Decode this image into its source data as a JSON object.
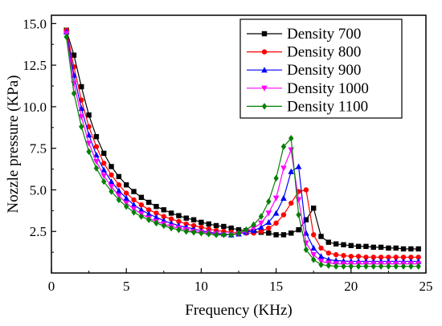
{
  "chart_data": {
    "type": "line",
    "xlabel": "Frequency (KHz)",
    "ylabel": "Nozzle pressure (KPa)",
    "xlim": [
      0,
      25
    ],
    "ylim": [
      0,
      15.5
    ],
    "x_ticks": [
      0,
      5,
      10,
      15,
      20,
      25
    ],
    "x_tick_labels": [
      "0",
      "5",
      "10",
      "15",
      "20",
      "25"
    ],
    "y_ticks": [
      2.5,
      5.0,
      7.5,
      10.0,
      12.5,
      15.0
    ],
    "y_tick_labels": [
      "2.5",
      "5.0",
      "7.5",
      "10.0",
      "12.5",
      "15.0"
    ],
    "grid": false,
    "legend_position": "top-right",
    "series": [
      {
        "name": "Density 700",
        "color": "#000000",
        "marker": "square",
        "x": [
          1.0,
          1.5,
          2.0,
          2.5,
          3.0,
          3.5,
          4.0,
          4.5,
          5.0,
          5.5,
          6.0,
          6.5,
          7.0,
          7.5,
          8.0,
          8.5,
          9.0,
          9.5,
          10.0,
          10.5,
          11.0,
          11.5,
          12.0,
          12.5,
          13.0,
          13.5,
          14.0,
          14.5,
          15.0,
          15.5,
          16.0,
          16.5,
          17.0,
          17.5,
          18.0,
          18.5,
          19.0,
          19.5,
          20.0,
          20.5,
          21.0,
          21.5,
          22.0,
          22.5,
          23.0,
          23.5,
          24.0,
          24.5
        ],
        "y": [
          14.6,
          13.1,
          11.2,
          9.5,
          8.2,
          7.2,
          6.4,
          5.8,
          5.3,
          4.9,
          4.55,
          4.25,
          4.0,
          3.8,
          3.6,
          3.45,
          3.3,
          3.2,
          3.05,
          2.95,
          2.85,
          2.8,
          2.7,
          2.6,
          2.55,
          2.5,
          2.45,
          2.4,
          2.3,
          2.3,
          2.4,
          2.6,
          3.2,
          3.9,
          2.2,
          1.85,
          1.75,
          1.7,
          1.65,
          1.6,
          1.6,
          1.55,
          1.55,
          1.5,
          1.5,
          1.45,
          1.45,
          1.45
        ]
      },
      {
        "name": "Density 800",
        "color": "#ff0000",
        "marker": "circle",
        "x": [
          1.0,
          1.5,
          2.0,
          2.5,
          3.0,
          3.5,
          4.0,
          4.5,
          5.0,
          5.5,
          6.0,
          6.5,
          7.0,
          7.5,
          8.0,
          8.5,
          9.0,
          9.5,
          10.0,
          10.5,
          11.0,
          11.5,
          12.0,
          12.5,
          13.0,
          13.5,
          14.0,
          14.5,
          15.0,
          15.5,
          16.0,
          16.5,
          17.0,
          17.5,
          18.0,
          18.5,
          19.0,
          19.5,
          20.0,
          20.5,
          21.0,
          21.5,
          22.0,
          22.5,
          23.0,
          23.5,
          24.0,
          24.5
        ],
        "y": [
          14.6,
          12.4,
          10.4,
          8.8,
          7.6,
          6.6,
          5.9,
          5.3,
          4.8,
          4.4,
          4.1,
          3.8,
          3.6,
          3.4,
          3.25,
          3.1,
          2.95,
          2.85,
          2.75,
          2.65,
          2.55,
          2.5,
          2.45,
          2.4,
          2.4,
          2.4,
          2.5,
          2.7,
          3.0,
          3.5,
          4.2,
          4.9,
          5.0,
          2.3,
          1.5,
          1.2,
          1.1,
          1.05,
          1.0,
          1.0,
          0.95,
          0.95,
          0.95,
          0.95,
          0.95,
          0.95,
          0.95,
          0.95
        ]
      },
      {
        "name": "Density 900",
        "color": "#0000ff",
        "marker": "triangle-up",
        "x": [
          1.0,
          1.5,
          2.0,
          2.5,
          3.0,
          3.5,
          4.0,
          4.5,
          5.0,
          5.5,
          6.0,
          6.5,
          7.0,
          7.5,
          8.0,
          8.5,
          9.0,
          9.5,
          10.0,
          10.5,
          11.0,
          11.5,
          12.0,
          12.5,
          13.0,
          13.5,
          14.0,
          14.5,
          15.0,
          15.5,
          16.0,
          16.5,
          17.0,
          17.5,
          18.0,
          18.5,
          19.0,
          19.5,
          20.0,
          20.5,
          21.0,
          21.5,
          22.0,
          22.5,
          23.0,
          23.5,
          24.0,
          24.5
        ],
        "y": [
          14.5,
          11.9,
          9.9,
          8.3,
          7.1,
          6.2,
          5.5,
          4.95,
          4.5,
          4.1,
          3.8,
          3.55,
          3.35,
          3.15,
          3.0,
          2.85,
          2.75,
          2.65,
          2.55,
          2.45,
          2.4,
          2.35,
          2.3,
          2.35,
          2.45,
          2.55,
          2.75,
          3.05,
          3.6,
          4.5,
          6.1,
          6.4,
          2.4,
          1.5,
          1.0,
          0.8,
          0.75,
          0.72,
          0.7,
          0.7,
          0.7,
          0.7,
          0.7,
          0.7,
          0.7,
          0.7,
          0.7,
          0.7
        ]
      },
      {
        "name": "Density 1000",
        "color": "#ff00ff",
        "marker": "triangle-down",
        "x": [
          1.0,
          1.5,
          2.0,
          2.5,
          3.0,
          3.5,
          4.0,
          4.5,
          5.0,
          5.5,
          6.0,
          6.5,
          7.0,
          7.5,
          8.0,
          8.5,
          9.0,
          9.5,
          10.0,
          10.5,
          11.0,
          11.5,
          12.0,
          12.5,
          13.0,
          13.5,
          14.0,
          14.5,
          15.0,
          15.5,
          16.0,
          16.5,
          17.0,
          17.5,
          18.0,
          18.5,
          19.0,
          19.5,
          20.0,
          20.5,
          21.0,
          21.5,
          22.0,
          22.5,
          23.0,
          23.5,
          24.0,
          24.5
        ],
        "y": [
          14.4,
          11.4,
          9.4,
          7.8,
          6.7,
          5.85,
          5.2,
          4.65,
          4.2,
          3.85,
          3.55,
          3.3,
          3.1,
          2.95,
          2.8,
          2.7,
          2.6,
          2.5,
          2.45,
          2.4,
          2.35,
          2.3,
          2.3,
          2.35,
          2.5,
          2.7,
          3.0,
          3.6,
          4.5,
          6.3,
          7.4,
          4.4,
          1.8,
          1.1,
          0.7,
          0.6,
          0.55,
          0.55,
          0.55,
          0.55,
          0.55,
          0.55,
          0.55,
          0.55,
          0.55,
          0.55,
          0.55,
          0.55
        ]
      },
      {
        "name": "Density 1100",
        "color": "#008000",
        "marker": "diamond",
        "x": [
          1.0,
          1.5,
          2.0,
          2.5,
          3.0,
          3.5,
          4.0,
          4.5,
          5.0,
          5.5,
          6.0,
          6.5,
          7.0,
          7.5,
          8.0,
          8.5,
          9.0,
          9.5,
          10.0,
          10.5,
          11.0,
          11.5,
          12.0,
          12.5,
          13.0,
          13.5,
          14.0,
          14.5,
          15.0,
          15.5,
          16.0,
          16.5,
          17.0,
          17.5,
          18.0,
          18.5,
          19.0,
          19.5,
          20.0,
          20.5,
          21.0,
          21.5,
          22.0,
          22.5,
          23.0,
          23.5,
          24.0,
          24.5
        ],
        "y": [
          14.2,
          10.8,
          8.8,
          7.3,
          6.3,
          5.5,
          4.9,
          4.4,
          4.0,
          3.65,
          3.4,
          3.2,
          3.0,
          2.85,
          2.7,
          2.6,
          2.5,
          2.45,
          2.4,
          2.35,
          2.3,
          2.3,
          2.3,
          2.4,
          2.6,
          2.9,
          3.4,
          4.3,
          5.7,
          7.6,
          8.1,
          3.5,
          1.4,
          0.8,
          0.5,
          0.45,
          0.4,
          0.4,
          0.4,
          0.4,
          0.4,
          0.4,
          0.4,
          0.4,
          0.4,
          0.4,
          0.4,
          0.4
        ]
      }
    ]
  }
}
